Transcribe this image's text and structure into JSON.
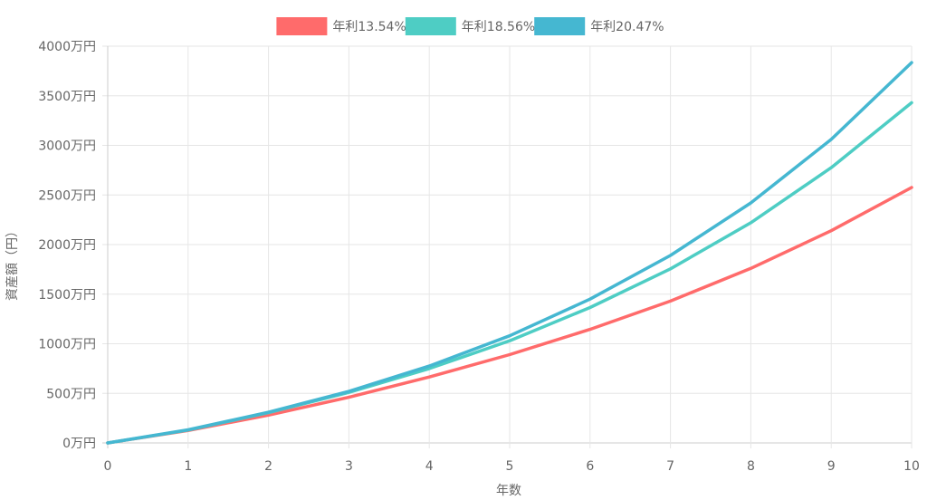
{
  "chart_data": {
    "type": "line",
    "xlabel": "年数",
    "ylabel": "資産額（円）",
    "x": [
      0,
      1,
      2,
      3,
      4,
      5,
      6,
      7,
      8,
      9,
      10
    ],
    "x_ticks": [
      "0",
      "1",
      "2",
      "3",
      "4",
      "5",
      "6",
      "7",
      "8",
      "9",
      "10"
    ],
    "ylim": [
      0,
      4000
    ],
    "y_ticks": [
      {
        "value": 0,
        "label": "0万円"
      },
      {
        "value": 500,
        "label": "500万円"
      },
      {
        "value": 1000,
        "label": "1000万円"
      },
      {
        "value": 1500,
        "label": "1500万円"
      },
      {
        "value": 2000,
        "label": "2000万円"
      },
      {
        "value": 2500,
        "label": "2500万円"
      },
      {
        "value": 3000,
        "label": "3000万円"
      },
      {
        "value": 3500,
        "label": "3500万円"
      },
      {
        "value": 4000,
        "label": "4000万円"
      }
    ],
    "grid": true,
    "legend": "top-center",
    "series": [
      {
        "name": "年利13.54%",
        "color": "#ff6b6b",
        "values": [
          0,
          125,
          280,
          460,
          665,
          890,
          1145,
          1430,
          1760,
          2140,
          2575
        ]
      },
      {
        "name": "年利18.56%",
        "color": "#4ecdc4",
        "values": [
          0,
          130,
          305,
          510,
          750,
          1030,
          1365,
          1755,
          2220,
          2775,
          3430
        ]
      },
      {
        "name": "年利20.47%",
        "color": "#45b7d1",
        "values": [
          0,
          132,
          310,
          520,
          775,
          1080,
          1450,
          1890,
          2420,
          3060,
          3835
        ]
      }
    ]
  }
}
